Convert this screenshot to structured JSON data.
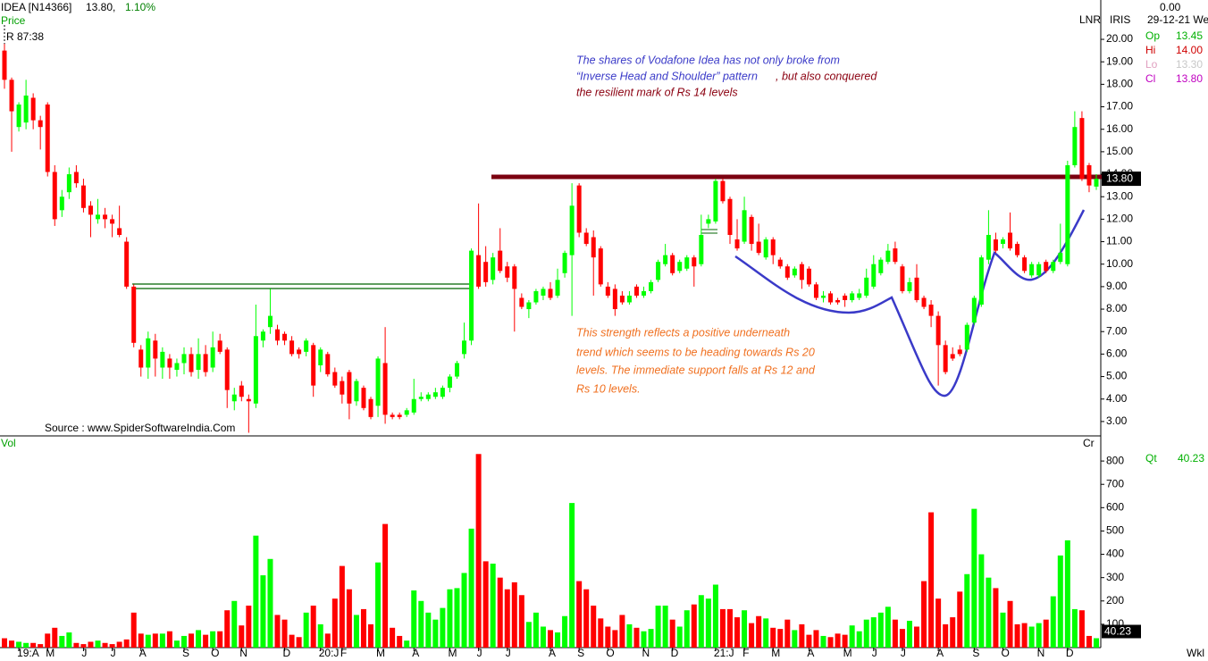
{
  "header": {
    "symbol": "IDEA [N14366]",
    "last": "13.80,",
    "change": "1.10%",
    "panel_label": "Price",
    "r_label": "R 87:38",
    "lnr": "LNR",
    "iris": "IRIS",
    "zero": "0.00",
    "date": "29-12-21 We",
    "info": [
      {
        "label": "Op",
        "value": "13.45"
      },
      {
        "label": "Hi",
        "value": "14.00"
      },
      {
        "label": "Lo",
        "value": "13.30"
      },
      {
        "label": "Cl",
        "value": "13.80"
      }
    ]
  },
  "volume_panel": {
    "label": "Vol",
    "cr": "Cr",
    "qt_label": "Qt",
    "qt_value": "40.23"
  },
  "footer": {
    "period": "Wkl"
  },
  "source": "Source : www.SpiderSoftwareIndia.Com",
  "annotations": {
    "top": [
      "The shares of Vodafone Idea has not only broke from",
      "“Inverse Head and Shoulder” pattern",
      " , but also conquered",
      "the resilient mark of Rs 14 levels"
    ],
    "bottom": [
      "This strength reflects a positive underneath",
      "trend which seems to be heading towards Rs 20",
      "levels. The immediate support falls at Rs 12 and",
      "Rs 10 levels."
    ]
  },
  "chart_data": [
    {
      "type": "candlestick",
      "up_color": "#00ff00",
      "down_color": "#ff0000",
      "categories": [
        null,
        null,
        "19:A",
        null,
        null,
        null,
        "M",
        null,
        null,
        null,
        null,
        "J",
        null,
        null,
        null,
        "J",
        null,
        null,
        null,
        "A",
        null,
        null,
        null,
        null,
        null,
        "S",
        null,
        null,
        null,
        "O",
        null,
        null,
        null,
        "N",
        null,
        null,
        null,
        null,
        null,
        "D",
        null,
        null,
        null,
        null,
        "20:J",
        null,
        null,
        "F",
        null,
        null,
        null,
        null,
        "M",
        null,
        null,
        null,
        null,
        "A",
        null,
        null,
        null,
        null,
        "M",
        null,
        null,
        null,
        "J",
        null,
        null,
        null,
        "J",
        null,
        null,
        null,
        null,
        null,
        "A",
        null,
        null,
        null,
        "S",
        null,
        null,
        null,
        "O",
        null,
        null,
        null,
        null,
        "N",
        null,
        null,
        null,
        "D",
        null,
        null,
        null,
        null,
        null,
        "21:J",
        null,
        null,
        null,
        "F",
        null,
        null,
        null,
        "M",
        null,
        null,
        null,
        null,
        "A",
        null,
        null,
        null,
        null,
        "M",
        null,
        null,
        null,
        "J",
        null,
        null,
        null,
        "J",
        null,
        null,
        null,
        null,
        "A",
        null,
        null,
        null,
        null,
        "S",
        null,
        null,
        null,
        "O",
        null,
        null,
        null,
        null,
        "N",
        null,
        null,
        null,
        "D",
        null,
        null,
        null,
        null
      ],
      "open": [
        19.5,
        18.2,
        16.1,
        16.3,
        17.4,
        16.4,
        17.1,
        14.1,
        12.4,
        13.2,
        14.1,
        13.5,
        12.6,
        12.0,
        12.2,
        12.0,
        11.6,
        11.0,
        9.0,
        6.2,
        5.4,
        6.6,
        5.4,
        5.8,
        5.3,
        5.6,
        6.0,
        5.3,
        6.0,
        5.4,
        6.6,
        6.2,
        3.9,
        4.6,
        4.0,
        3.8,
        6.6,
        7.2,
        7.1,
        6.9,
        6.6,
        6.2,
        6.1,
        6.4,
        5.5,
        6.0,
        5.2,
        4.8,
        5.2,
        3.9,
        4.5,
        4.0,
        3.7,
        5.6,
        3.3,
        3.3,
        3.3,
        3.4,
        4.0,
        4.0,
        4.1,
        4.1,
        4.5,
        5.0,
        6.0,
        6.6,
        10.4,
        10.1,
        9.3,
        10.6,
        9.9,
        9.9,
        8.5,
        8.0,
        8.3,
        8.6,
        8.9,
        8.6,
        9.6,
        10.4,
        13.5,
        11.4,
        11.2,
        10.7,
        9.0,
        8.9,
        8.6,
        8.3,
        9.0,
        8.6,
        8.8,
        9.3,
        10.0,
        10.4,
        9.7,
        9.8,
        10.3,
        10.0,
        11.8,
        11.9,
        13.7,
        12.9,
        11.1,
        11.0,
        12.1,
        11.0,
        10.3,
        11.1,
        10.2,
        9.9,
        9.5,
        10.0,
        9.8,
        9.1,
        8.5,
        8.7,
        8.4,
        8.6,
        8.4,
        8.5,
        8.6,
        9.0,
        9.6,
        10.1,
        10.7,
        9.9,
        8.8,
        9.4,
        8.5,
        8.2,
        7.7,
        6.4,
        6.0,
        6.2,
        6.2,
        7.4,
        8.2,
        10.2,
        11.1,
        10.9,
        11.4,
        10.9,
        10.3,
        9.5,
        9.5,
        10.1,
        9.7,
        10.1,
        10.0,
        14.4,
        16.5,
        14.4,
        13.45
      ],
      "high": [
        19.8,
        18.3,
        17.2,
        18.2,
        17.6,
        16.6,
        17.2,
        14.4,
        13.3,
        14.3,
        14.4,
        13.8,
        12.8,
        12.9,
        12.5,
        12.2,
        12.6,
        11.2,
        9.1,
        6.4,
        7.0,
        6.9,
        6.3,
        6.0,
        5.8,
        6.3,
        6.3,
        6.7,
        6.4,
        7.0,
        6.9,
        6.3,
        4.5,
        4.8,
        4.2,
        8.2,
        7.1,
        8.9,
        7.3,
        7.0,
        6.8,
        6.3,
        6.7,
        6.5,
        6.3,
        6.1,
        5.4,
        5.0,
        5.3,
        4.9,
        4.6,
        4.1,
        5.9,
        7.2,
        3.4,
        3.4,
        3.6,
        4.9,
        4.3,
        4.3,
        4.5,
        4.6,
        5.1,
        5.7,
        7.4,
        10.7,
        12.7,
        10.8,
        10.5,
        11.6,
        10.1,
        10.0,
        8.7,
        8.4,
        8.9,
        9.0,
        9.2,
        9.8,
        10.6,
        13.6,
        13.6,
        11.6,
        11.5,
        10.8,
        9.2,
        9.1,
        8.8,
        8.8,
        9.1,
        9.0,
        9.3,
        10.2,
        10.9,
        10.5,
        10.2,
        10.4,
        10.4,
        12.2,
        12.2,
        13.8,
        13.8,
        13.0,
        12.0,
        13.0,
        12.2,
        11.8,
        11.2,
        11.2,
        10.3,
        10.0,
        9.9,
        10.1,
        9.9,
        9.2,
        8.8,
        8.8,
        8.5,
        8.7,
        8.8,
        8.9,
        9.8,
        10.4,
        10.3,
        10.9,
        11.0,
        10.0,
        9.4,
        10.0,
        8.6,
        8.4,
        7.9,
        6.6,
        6.3,
        6.4,
        7.4,
        8.6,
        10.4,
        12.4,
        11.4,
        11.2,
        12.3,
        11.0,
        10.4,
        10.1,
        10.1,
        10.2,
        10.2,
        11.8,
        14.6,
        16.8,
        16.8,
        14.5,
        14.0
      ],
      "low": [
        17.8,
        15.0,
        15.9,
        16.0,
        16.0,
        15.1,
        13.9,
        11.7,
        12.1,
        12.9,
        13.4,
        12.3,
        11.2,
        11.8,
        11.6,
        11.2,
        11.2,
        8.9,
        6.3,
        5.0,
        4.9,
        5.0,
        4.9,
        4.9,
        5.0,
        5.1,
        5.0,
        4.9,
        5.0,
        5.2,
        6.0,
        3.6,
        3.5,
        3.9,
        2.5,
        3.6,
        6.3,
        6.9,
        6.4,
        6.4,
        5.9,
        5.8,
        5.9,
        4.1,
        5.2,
        5.0,
        4.5,
        3.8,
        3.1,
        3.7,
        3.5,
        3.1,
        3.2,
        2.9,
        3.1,
        3.1,
        3.2,
        3.3,
        3.9,
        3.9,
        4.0,
        4.0,
        4.3,
        4.9,
        5.8,
        6.4,
        8.9,
        9.0,
        9.1,
        9.6,
        9.2,
        7.0,
        8.0,
        7.6,
        8.2,
        8.4,
        8.4,
        8.5,
        9.4,
        7.7,
        11.2,
        10.8,
        8.6,
        9.0,
        8.5,
        7.7,
        8.2,
        8.2,
        8.5,
        8.5,
        8.7,
        9.2,
        9.9,
        9.5,
        9.6,
        9.7,
        9.0,
        9.9,
        11.6,
        11.8,
        12.7,
        10.9,
        10.6,
        10.9,
        10.6,
        10.4,
        10.2,
        10.0,
        9.8,
        9.3,
        9.4,
        8.9,
        9.0,
        8.4,
        8.3,
        8.2,
        8.2,
        8.1,
        8.3,
        8.4,
        8.5,
        8.9,
        9.5,
        10.0,
        10.0,
        8.7,
        8.7,
        8.3,
        8.0,
        7.2,
        4.6,
        5.1,
        5.7,
        5.9,
        6.1,
        7.3,
        8.1,
        10.0,
        10.5,
        10.7,
        10.6,
        10.3,
        9.6,
        9.4,
        9.4,
        9.6,
        9.6,
        10.0,
        9.9,
        14.3,
        13.7,
        13.2,
        13.3
      ],
      "close": [
        18.2,
        16.8,
        17.1,
        17.5,
        16.4,
        16.1,
        14.1,
        12.0,
        13.0,
        14.0,
        13.6,
        12.5,
        12.2,
        12.2,
        12.0,
        11.8,
        11.3,
        9.0,
        6.5,
        5.4,
        6.7,
        5.8,
        6.1,
        5.4,
        5.6,
        6.0,
        5.2,
        6.0,
        5.2,
        6.3,
        6.1,
        4.4,
        4.2,
        4.1,
        3.9,
        6.8,
        7.0,
        7.7,
        6.6,
        6.6,
        6.0,
        6.0,
        6.6,
        4.6,
        6.2,
        5.1,
        4.6,
        4.2,
        3.8,
        4.8,
        3.6,
        3.2,
        5.8,
        3.3,
        3.2,
        3.2,
        3.5,
        4.0,
        4.1,
        4.2,
        4.3,
        4.5,
        5.0,
        5.6,
        6.6,
        10.6,
        9.0,
        9.2,
        10.3,
        9.7,
        9.4,
        8.9,
        8.1,
        8.3,
        8.8,
        8.9,
        8.5,
        9.3,
        10.5,
        12.6,
        11.4,
        10.9,
        10.3,
        9.1,
        8.6,
        8.0,
        8.3,
        8.6,
        8.6,
        8.8,
        9.2,
        10.1,
        10.4,
        9.6,
        10.1,
        10.3,
        9.9,
        11.3,
        12.0,
        13.7,
        12.8,
        11.3,
        10.7,
        12.4,
        10.9,
        10.5,
        11.1,
        10.4,
        9.9,
        9.4,
        9.8,
        9.3,
        9.1,
        8.5,
        8.6,
        8.3,
        8.3,
        8.4,
        8.7,
        8.7,
        9.4,
        10.0,
        10.2,
        10.6,
        10.1,
        8.8,
        9.2,
        8.4,
        8.1,
        7.7,
        6.4,
        5.2,
        5.8,
        6.0,
        7.3,
        8.5,
        10.3,
        11.3,
        10.6,
        11.1,
        10.7,
        10.4,
        9.7,
        10.0,
        10.0,
        9.7,
        10.1,
        10.5,
        14.4,
        16.1,
        13.8,
        13.5,
        13.8
      ],
      "ylim": [
        2.4,
        21.75
      ],
      "yticks": [
        {
          "value": 3,
          "label": "3.00"
        },
        {
          "value": 4,
          "label": "4.00"
        },
        {
          "value": 5,
          "label": "5.00"
        },
        {
          "value": 6,
          "label": "6.00"
        },
        {
          "value": 7,
          "label": "7.00"
        },
        {
          "value": 8,
          "label": "8.00"
        },
        {
          "value": 9,
          "label": "9.00"
        },
        {
          "value": 10,
          "label": "10.00"
        },
        {
          "value": 11,
          "label": "11.00"
        },
        {
          "value": 12,
          "label": "12.00"
        },
        {
          "value": 13,
          "label": "13.00"
        },
        {
          "value": 14,
          "label": "14.00"
        },
        {
          "value": 15,
          "label": "15.00"
        },
        {
          "value": 16,
          "label": "16.00"
        },
        {
          "value": 17,
          "label": "17.00"
        },
        {
          "value": 18,
          "label": "18.00"
        },
        {
          "value": 19,
          "label": "19.00"
        },
        {
          "value": 20,
          "label": "20.00"
        }
      ],
      "price_tag": {
        "value": 13.8,
        "label": "13.80"
      }
    },
    {
      "type": "bar",
      "up_color": "#00ff00",
      "down_color": "#ff0000",
      "values": [
        40,
        30,
        25,
        20,
        20,
        15,
        60,
        85,
        50,
        65,
        20,
        15,
        25,
        30,
        20,
        15,
        25,
        35,
        150,
        60,
        55,
        60,
        60,
        70,
        30,
        50,
        60,
        75,
        55,
        70,
        70,
        160,
        200,
        95,
        180,
        480,
        310,
        380,
        140,
        120,
        55,
        45,
        150,
        180,
        100,
        60,
        210,
        350,
        250,
        140,
        165,
        100,
        365,
        530,
        85,
        50,
        30,
        245,
        200,
        150,
        120,
        170,
        250,
        255,
        320,
        510,
        830,
        370,
        360,
        300,
        250,
        280,
        225,
        110,
        150,
        90,
        75,
        65,
        135,
        620,
        285,
        250,
        180,
        125,
        90,
        75,
        140,
        100,
        85,
        70,
        80,
        180,
        180,
        120,
        90,
        160,
        185,
        225,
        210,
        270,
        165,
        165,
        130,
        160,
        105,
        135,
        125,
        85,
        80,
        120,
        75,
        100,
        55,
        75,
        50,
        45,
        60,
        55,
        95,
        70,
        120,
        130,
        150,
        175,
        120,
        80,
        115,
        90,
        285,
        580,
        210,
        100,
        130,
        240,
        315,
        595,
        400,
        300,
        255,
        150,
        200,
        100,
        105,
        90,
        105,
        120,
        220,
        395,
        460,
        165,
        160,
        50,
        40.23
      ],
      "ylim": [
        0,
        900
      ],
      "yticks": [
        100,
        200,
        300,
        400,
        500,
        600,
        700,
        800
      ],
      "volume_tag": {
        "value": 40.23,
        "label": "40.23"
      }
    }
  ]
}
